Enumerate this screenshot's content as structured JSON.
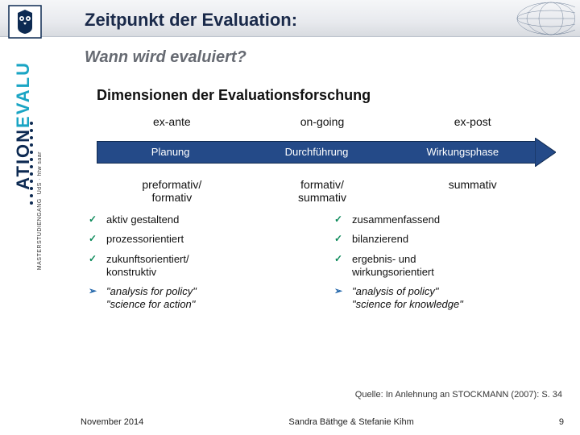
{
  "header": {
    "title": "Zeitpunkt der Evaluation:",
    "subtitle": "Wann wird evaluiert?"
  },
  "sidebar": {
    "big_cyan": "EVALU",
    "big_navy": "ATION",
    "small": "MASTERSTUDIENGANG",
    "aux": "UdS · htw saar"
  },
  "section_title": "Dimensionen der Evaluationsforschung",
  "timepoints": [
    "ex-ante",
    "on-going",
    "ex-post"
  ],
  "phases": [
    "Planung",
    "Durchführung",
    "Wirkungsphase"
  ],
  "types": [
    "preformativ/\nformativ",
    "formativ/\nsummativ",
    "summativ"
  ],
  "left_list": [
    {
      "mark": "check",
      "text": "aktiv gestaltend"
    },
    {
      "mark": "check",
      "text": "prozessorientiert"
    },
    {
      "mark": "check",
      "text": "zukunftsorientiert/\nkonstruktiv"
    },
    {
      "mark": "arrow",
      "text": "\"analysis for policy\"\n\"science for action\"",
      "italic": true
    }
  ],
  "right_list": [
    {
      "mark": "check",
      "text": "zusammenfassend"
    },
    {
      "mark": "check",
      "text": "bilanzierend"
    },
    {
      "mark": "check",
      "text": "ergebnis- und\nwirkungsorientiert"
    },
    {
      "mark": "arrow",
      "text": "\"analysis of policy\"\n\"science for knowledge\"",
      "italic": true
    }
  ],
  "source": "Quelle: In Anlehnung an STOCKMANN (2007): S. 34",
  "footer": {
    "date": "November 2014",
    "authors": "Sandra Bäthge & Stefanie Kihm",
    "page": "9"
  },
  "colors": {
    "arrow_fill": "#244a88",
    "arrow_border": "#102a50",
    "check": "#0c8a5a",
    "arrow_bullet": "#1c62a8"
  }
}
